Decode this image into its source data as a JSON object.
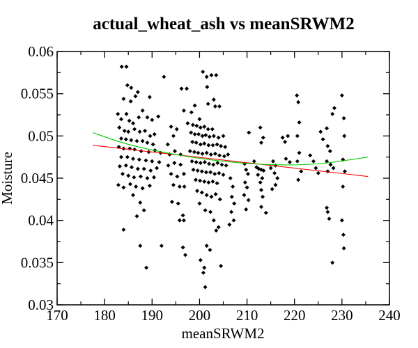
{
  "chart_data": {
    "type": "scatter",
    "title": "actual_wheat_ash vs meanSRWM2",
    "xlabel": "meanSRWM2",
    "ylabel": "Moisture",
    "xlim": [
      170,
      240
    ],
    "ylim": [
      0.03,
      0.06
    ],
    "x_ticks": [
      "170",
      "180",
      "190",
      "200",
      "210",
      "220",
      "230",
      "240"
    ],
    "y_ticks": [
      "0.03",
      "0.035",
      "0.04",
      "0.045",
      "0.05",
      "0.055",
      "0.06"
    ],
    "grid": false,
    "legend": "none",
    "scatter_points": [
      [
        183.6,
        0.0582
      ],
      [
        184.6,
        0.0582
      ],
      [
        184.8,
        0.056
      ],
      [
        185.6,
        0.0557
      ],
      [
        187.0,
        0.0552
      ],
      [
        186.5,
        0.0547
      ],
      [
        184.0,
        0.0544
      ],
      [
        185.5,
        0.0541
      ],
      [
        189.5,
        0.0546
      ],
      [
        182.8,
        0.0526
      ],
      [
        183.5,
        0.052
      ],
      [
        184.6,
        0.0526
      ],
      [
        185.2,
        0.0518
      ],
      [
        186.0,
        0.0515
      ],
      [
        187.2,
        0.0522
      ],
      [
        188.0,
        0.053
      ],
      [
        189.0,
        0.0522
      ],
      [
        190.0,
        0.0519
      ],
      [
        191.3,
        0.0523
      ],
      [
        183.1,
        0.051
      ],
      [
        184.2,
        0.0506
      ],
      [
        185.0,
        0.0505
      ],
      [
        186.3,
        0.0508
      ],
      [
        187.4,
        0.0505
      ],
      [
        188.5,
        0.0506
      ],
      [
        189.6,
        0.05
      ],
      [
        190.5,
        0.0502
      ],
      [
        183.5,
        0.0497
      ],
      [
        184.5,
        0.0496
      ],
      [
        185.6,
        0.0495
      ],
      [
        186.8,
        0.0494
      ],
      [
        188.0,
        0.0494
      ],
      [
        189.0,
        0.0492
      ],
      [
        190.2,
        0.049
      ],
      [
        183.0,
        0.0487
      ],
      [
        184.0,
        0.0485
      ],
      [
        185.3,
        0.0485
      ],
      [
        186.3,
        0.0484
      ],
      [
        187.7,
        0.0482
      ],
      [
        189.3,
        0.0481
      ],
      [
        190.6,
        0.0483
      ],
      [
        191.8,
        0.048
      ],
      [
        183.5,
        0.0475
      ],
      [
        184.8,
        0.0475
      ],
      [
        186.0,
        0.0473
      ],
      [
        187.3,
        0.0472
      ],
      [
        188.7,
        0.0471
      ],
      [
        190.0,
        0.047
      ],
      [
        191.5,
        0.0469
      ],
      [
        183.2,
        0.0464
      ],
      [
        184.5,
        0.0465
      ],
      [
        185.7,
        0.0463
      ],
      [
        187.0,
        0.0461
      ],
      [
        188.3,
        0.0461
      ],
      [
        189.7,
        0.0459
      ],
      [
        191.0,
        0.0462
      ],
      [
        183.8,
        0.0455
      ],
      [
        185.0,
        0.0453
      ],
      [
        186.2,
        0.0451
      ],
      [
        187.6,
        0.0452
      ],
      [
        189.0,
        0.045
      ],
      [
        190.4,
        0.0451
      ],
      [
        182.9,
        0.0442
      ],
      [
        184.0,
        0.0439
      ],
      [
        185.4,
        0.0443
      ],
      [
        186.6,
        0.044
      ],
      [
        188.0,
        0.0438
      ],
      [
        189.5,
        0.0441
      ],
      [
        186.0,
        0.043
      ],
      [
        187.5,
        0.0421
      ],
      [
        188.3,
        0.0412
      ],
      [
        186.8,
        0.0405
      ],
      [
        184.0,
        0.0389
      ],
      [
        187.5,
        0.037
      ],
      [
        188.8,
        0.0344
      ],
      [
        192.5,
        0.057
      ],
      [
        193.3,
        0.049
      ],
      [
        194.0,
        0.0511
      ],
      [
        194.5,
        0.05
      ],
      [
        195.2,
        0.0508
      ],
      [
        193.7,
        0.0478
      ],
      [
        194.8,
        0.0482
      ],
      [
        196.0,
        0.0478
      ],
      [
        193.4,
        0.0465
      ],
      [
        194.7,
        0.0468
      ],
      [
        196.0,
        0.0466
      ],
      [
        194.0,
        0.0455
      ],
      [
        195.3,
        0.0452
      ],
      [
        196.7,
        0.0455
      ],
      [
        194.5,
        0.0442
      ],
      [
        195.8,
        0.044
      ],
      [
        196.8,
        0.044
      ],
      [
        194.2,
        0.0422
      ],
      [
        195.5,
        0.042
      ],
      [
        196.5,
        0.0406
      ],
      [
        195.8,
        0.04
      ],
      [
        196.7,
        0.04
      ],
      [
        192.0,
        0.037
      ],
      [
        196.5,
        0.0368
      ],
      [
        197.0,
        0.0359
      ],
      [
        196.2,
        0.0556
      ],
      [
        197.3,
        0.0556
      ],
      [
        196.7,
        0.053
      ],
      [
        197.5,
        0.0515
      ],
      [
        198.3,
        0.0528
      ],
      [
        199.0,
        0.0536
      ],
      [
        200.0,
        0.052
      ],
      [
        200.7,
        0.0576
      ],
      [
        201.5,
        0.057
      ],
      [
        202.5,
        0.0572
      ],
      [
        203.5,
        0.0572
      ],
      [
        201.6,
        0.0558
      ],
      [
        203.0,
        0.0543
      ],
      [
        201.8,
        0.0538
      ],
      [
        203.3,
        0.0535
      ],
      [
        204.2,
        0.0535
      ],
      [
        198.6,
        0.0513
      ],
      [
        199.4,
        0.0512
      ],
      [
        200.2,
        0.051
      ],
      [
        201.0,
        0.0511
      ],
      [
        201.8,
        0.0508
      ],
      [
        202.7,
        0.0508
      ],
      [
        198.2,
        0.0504
      ],
      [
        199.0,
        0.0502
      ],
      [
        199.8,
        0.0502
      ],
      [
        200.6,
        0.05
      ],
      [
        201.3,
        0.0501
      ],
      [
        202.1,
        0.0499
      ],
      [
        203.0,
        0.05
      ],
      [
        204.0,
        0.0498
      ],
      [
        205.0,
        0.05
      ],
      [
        198.5,
        0.0493
      ],
      [
        199.3,
        0.0492
      ],
      [
        200.2,
        0.049
      ],
      [
        201.0,
        0.0491
      ],
      [
        201.9,
        0.0489
      ],
      [
        202.8,
        0.0489
      ],
      [
        203.7,
        0.049
      ],
      [
        204.5,
        0.0488
      ],
      [
        205.4,
        0.0487
      ],
      [
        198.0,
        0.0482
      ],
      [
        198.9,
        0.0481
      ],
      [
        199.7,
        0.048
      ],
      [
        200.6,
        0.0479
      ],
      [
        201.5,
        0.048
      ],
      [
        202.4,
        0.0478
      ],
      [
        203.3,
        0.0479
      ],
      [
        204.2,
        0.0477
      ],
      [
        205.2,
        0.0476
      ],
      [
        206.0,
        0.0478
      ],
      [
        198.4,
        0.047
      ],
      [
        199.3,
        0.0469
      ],
      [
        200.2,
        0.0468
      ],
      [
        201.1,
        0.0469
      ],
      [
        202.0,
        0.0467
      ],
      [
        202.9,
        0.0466
      ],
      [
        203.8,
        0.0468
      ],
      [
        204.7,
        0.0466
      ],
      [
        205.6,
        0.0465
      ],
      [
        198.7,
        0.046
      ],
      [
        199.6,
        0.0459
      ],
      [
        200.5,
        0.0458
      ],
      [
        201.4,
        0.0457
      ],
      [
        202.3,
        0.0457
      ],
      [
        203.2,
        0.0455
      ],
      [
        204.1,
        0.0456
      ],
      [
        205.0,
        0.0454
      ],
      [
        199.2,
        0.0448
      ],
      [
        200.1,
        0.0447
      ],
      [
        201.0,
        0.0446
      ],
      [
        201.9,
        0.0445
      ],
      [
        202.8,
        0.0446
      ],
      [
        203.7,
        0.0444
      ],
      [
        199.5,
        0.0435
      ],
      [
        200.5,
        0.0433
      ],
      [
        201.5,
        0.043
      ],
      [
        202.5,
        0.0428
      ],
      [
        203.4,
        0.0431
      ],
      [
        204.3,
        0.0425
      ],
      [
        200.0,
        0.042
      ],
      [
        201.2,
        0.0412
      ],
      [
        202.3,
        0.041
      ],
      [
        203.0,
        0.04
      ],
      [
        204.0,
        0.0392
      ],
      [
        203.5,
        0.0388
      ],
      [
        201.5,
        0.037
      ],
      [
        202.2,
        0.0365
      ],
      [
        200.2,
        0.0353
      ],
      [
        201.0,
        0.0344
      ],
      [
        200.8,
        0.0338
      ],
      [
        204.5,
        0.0346
      ],
      [
        201.2,
        0.0321
      ],
      [
        206.5,
        0.045
      ],
      [
        207.0,
        0.044
      ],
      [
        206.8,
        0.0428
      ],
      [
        207.3,
        0.042
      ],
      [
        206.7,
        0.041
      ],
      [
        207.2,
        0.04
      ],
      [
        206.3,
        0.0395
      ],
      [
        209.5,
        0.0467
      ],
      [
        209.8,
        0.046
      ],
      [
        210.2,
        0.0455
      ],
      [
        209.6,
        0.0445
      ],
      [
        210.0,
        0.0439
      ],
      [
        209.4,
        0.043
      ],
      [
        210.3,
        0.0424
      ],
      [
        209.8,
        0.0413
      ],
      [
        210.4,
        0.0504
      ],
      [
        211.5,
        0.047
      ],
      [
        212.0,
        0.0463
      ],
      [
        212.5,
        0.0461
      ],
      [
        213.0,
        0.046
      ],
      [
        213.5,
        0.0459
      ],
      [
        212.3,
        0.0454
      ],
      [
        213.2,
        0.045
      ],
      [
        212.8,
        0.0445
      ],
      [
        213.0,
        0.0436
      ],
      [
        213.3,
        0.0428
      ],
      [
        213.0,
        0.0416
      ],
      [
        214.0,
        0.0409
      ],
      [
        212.8,
        0.051
      ],
      [
        213.0,
        0.0492
      ],
      [
        213.4,
        0.0498
      ],
      [
        215.0,
        0.0462
      ],
      [
        215.5,
        0.047
      ],
      [
        216.0,
        0.0465
      ],
      [
        215.8,
        0.0456
      ],
      [
        216.4,
        0.045
      ],
      [
        216.0,
        0.0442
      ],
      [
        215.3,
        0.0437
      ],
      [
        217.5,
        0.0498
      ],
      [
        218.0,
        0.0493
      ],
      [
        218.6,
        0.05
      ],
      [
        218.2,
        0.0473
      ],
      [
        219.0,
        0.0469
      ],
      [
        220.5,
        0.0548
      ],
      [
        220.8,
        0.054
      ],
      [
        221.0,
        0.0516
      ],
      [
        220.6,
        0.05
      ],
      [
        221.0,
        0.048
      ],
      [
        220.6,
        0.047
      ],
      [
        221.4,
        0.0458
      ],
      [
        220.8,
        0.0448
      ],
      [
        223.3,
        0.0477
      ],
      [
        224.0,
        0.047
      ],
      [
        224.5,
        0.0462
      ],
      [
        225.0,
        0.0456
      ],
      [
        225.5,
        0.0505
      ],
      [
        226.0,
        0.0496
      ],
      [
        226.8,
        0.0509
      ],
      [
        227.0,
        0.0488
      ],
      [
        227.5,
        0.0482
      ],
      [
        226.8,
        0.047
      ],
      [
        227.6,
        0.0466
      ],
      [
        227.0,
        0.0458
      ],
      [
        226.8,
        0.0415
      ],
      [
        227.0,
        0.041
      ],
      [
        227.3,
        0.0402
      ],
      [
        228.0,
        0.0526
      ],
      [
        228.4,
        0.0533
      ],
      [
        228.2,
        0.0462
      ],
      [
        228.0,
        0.035
      ],
      [
        230.0,
        0.0548
      ],
      [
        230.4,
        0.0521
      ],
      [
        230.5,
        0.05
      ],
      [
        230.2,
        0.0472
      ],
      [
        230.6,
        0.0458
      ],
      [
        230.2,
        0.044
      ],
      [
        230.0,
        0.04
      ],
      [
        230.3,
        0.0383
      ],
      [
        230.4,
        0.0367
      ]
    ],
    "series": [
      {
        "name": "",
        "type": "line",
        "color": "#ff0000",
        "x": [
          177.5,
          235.5
        ],
        "y": [
          0.0489,
          0.0452
        ]
      },
      {
        "name": "",
        "type": "curve",
        "color": "#00cc00",
        "x": [
          177.5,
          185,
          195,
          205,
          215,
          225,
          235.5
        ],
        "y": [
          0.0504,
          0.049,
          0.0478,
          0.047,
          0.0466,
          0.0467,
          0.0475
        ]
      }
    ],
    "point_color": "#000000",
    "axis_color": "#000000"
  }
}
